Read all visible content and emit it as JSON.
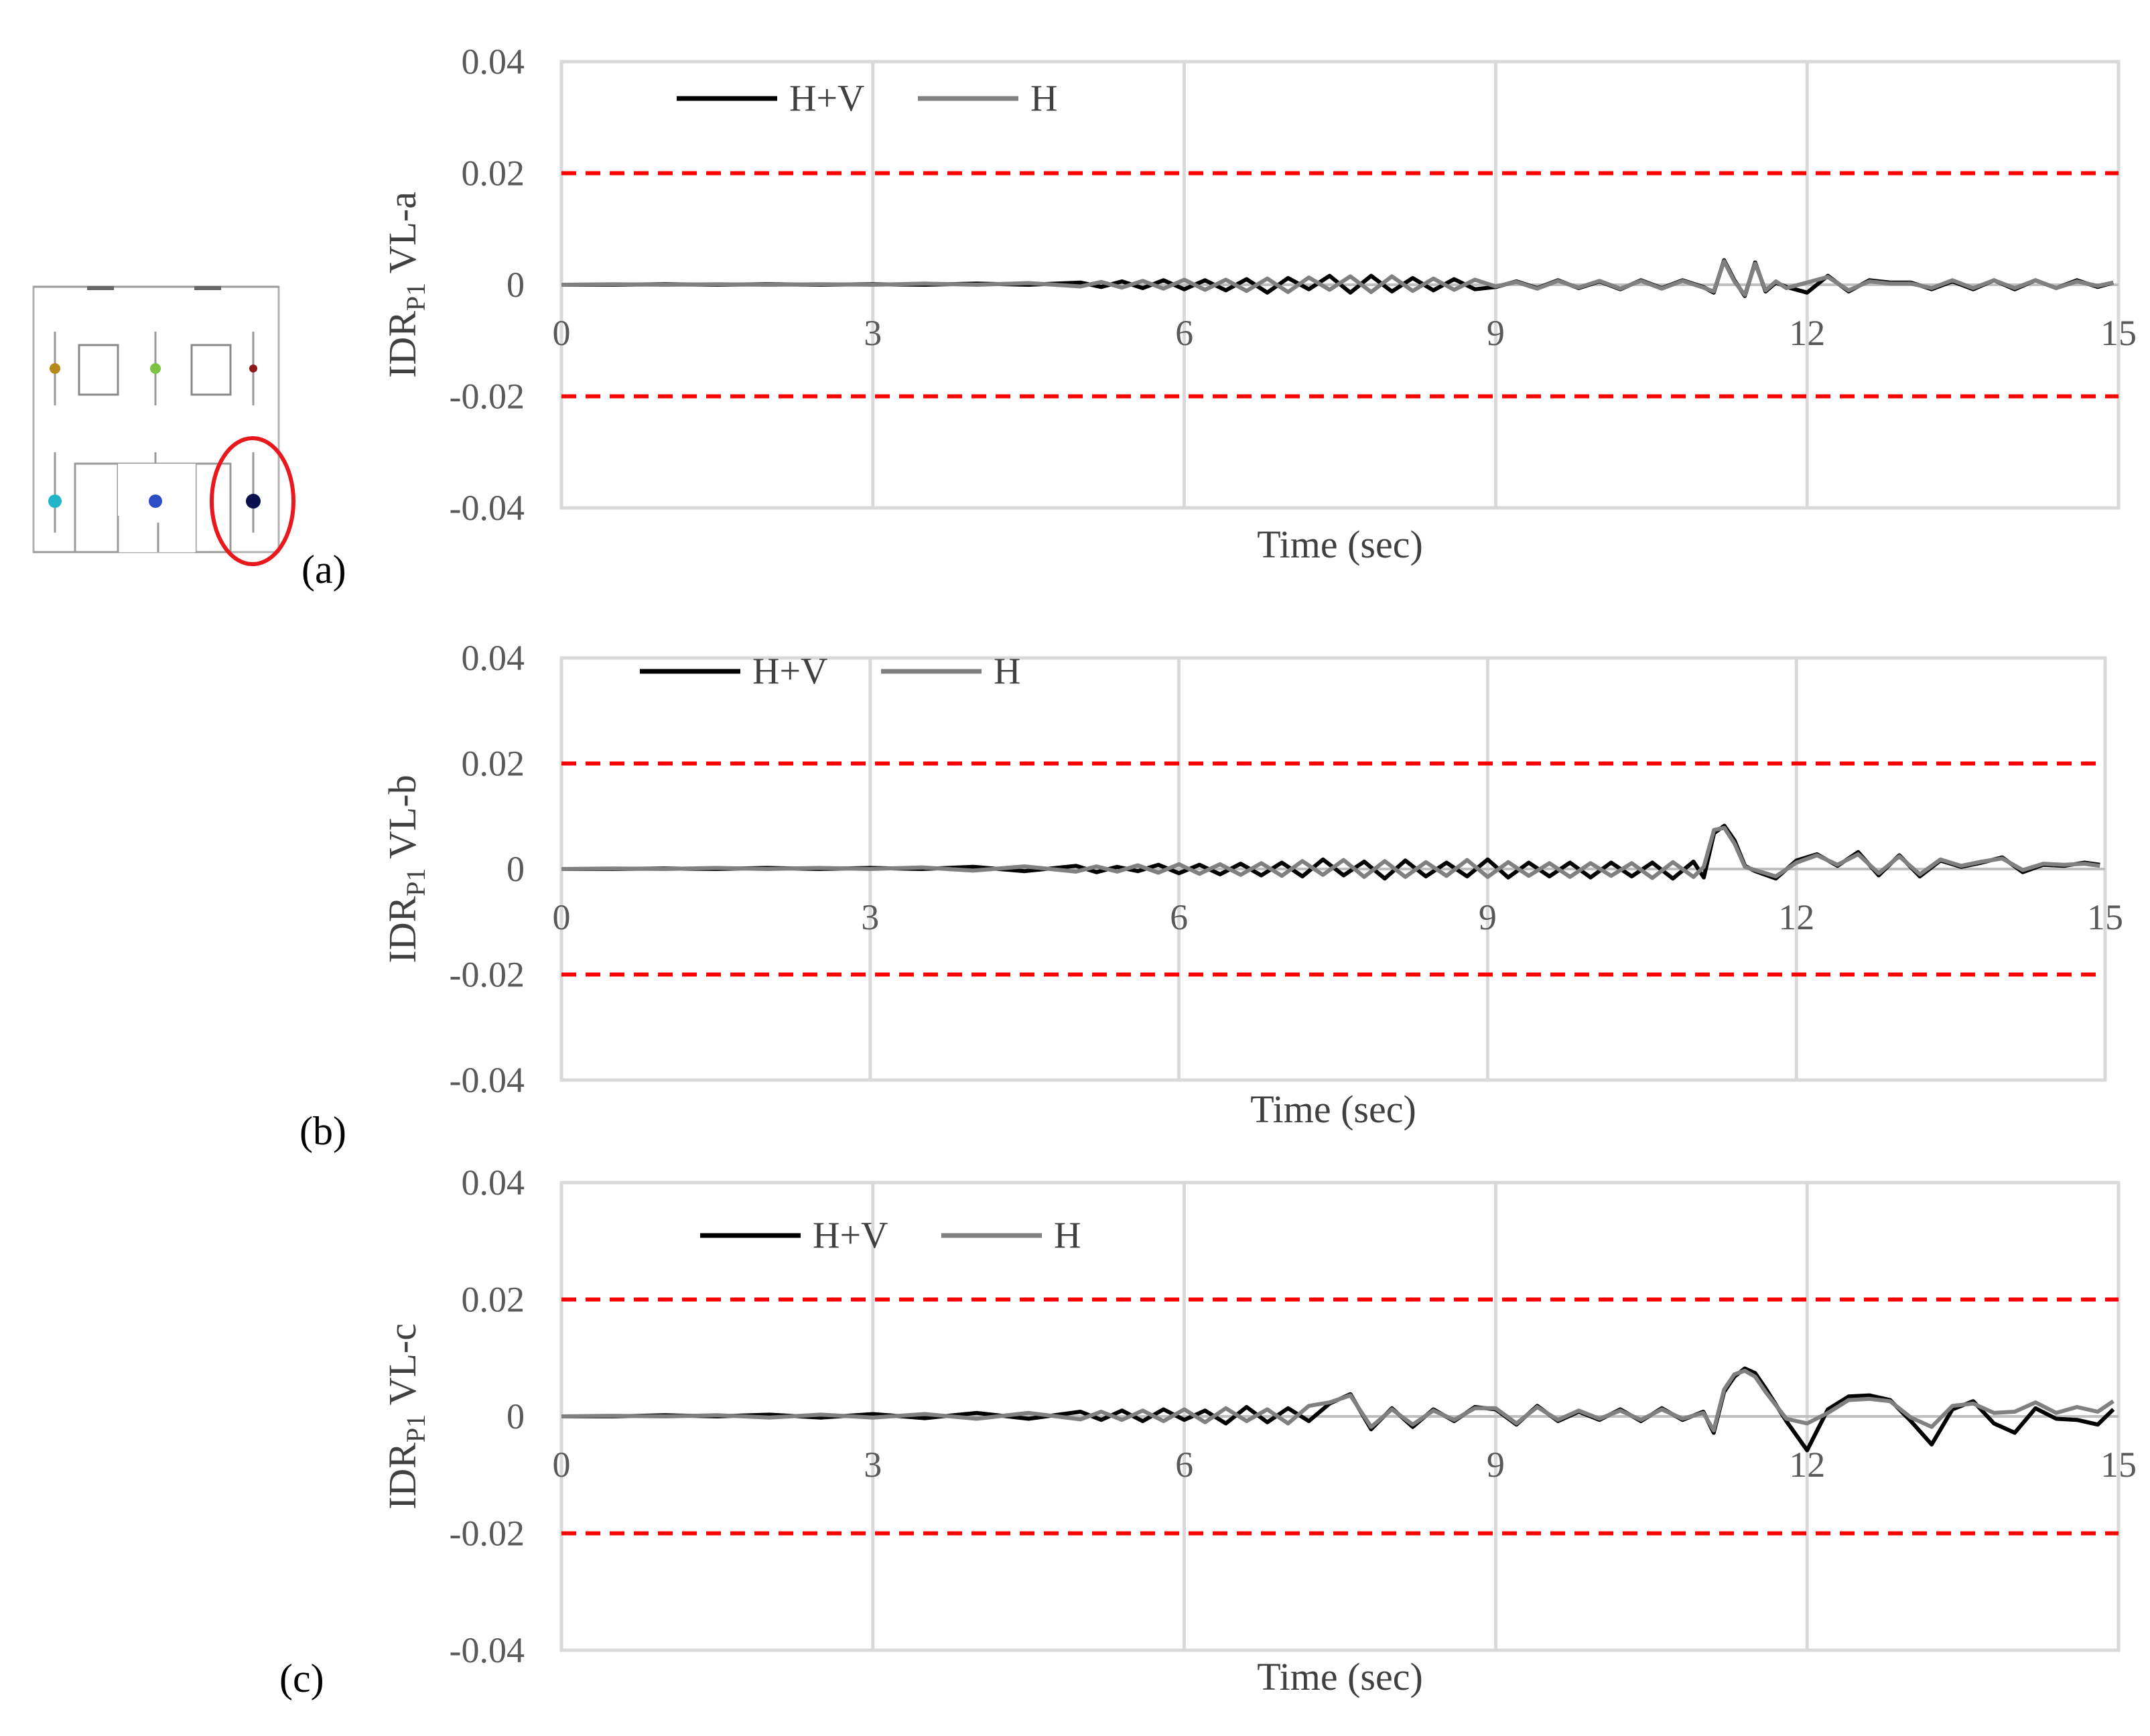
{
  "figure": {
    "panel_labels": [
      "(a)",
      "(b)",
      "(c)"
    ]
  },
  "chart_data": [
    {
      "type": "line",
      "panel": "(a)",
      "ylabel": {
        "main": "IDR",
        "sub": "P1",
        "suffix": " VL-a"
      },
      "xlabel": "Time (sec)",
      "xlim": [
        0,
        15
      ],
      "ylim": [
        -0.04,
        0.04
      ],
      "xticks": [
        "0",
        "3",
        "6",
        "9",
        "12",
        "15"
      ],
      "yticks": [
        "0.04",
        "0.02",
        "0",
        "-0.02",
        "-0.04"
      ],
      "limit_lines": [
        0.02,
        -0.02
      ],
      "legend": [
        "H+V",
        "H"
      ],
      "series": [
        {
          "name": "H+V",
          "color": "#000000",
          "x": [
            0,
            0.5,
            1,
            1.5,
            2,
            2.5,
            3,
            3.5,
            4,
            4.5,
            5,
            5.2,
            5.4,
            5.6,
            5.8,
            6,
            6.2,
            6.4,
            6.6,
            6.8,
            7,
            7.2,
            7.4,
            7.6,
            7.8,
            8,
            8.2,
            8.4,
            8.6,
            8.8,
            9,
            9.2,
            9.4,
            9.6,
            9.8,
            10,
            10.2,
            10.4,
            10.6,
            10.8,
            11,
            11.1,
            11.2,
            11.3,
            11.4,
            11.5,
            11.6,
            11.7,
            11.8,
            12,
            12.2,
            12.4,
            12.6,
            12.8,
            13,
            13.2,
            13.4,
            13.6,
            13.8,
            14,
            14.2,
            14.4,
            14.6,
            14.8,
            14.95
          ],
          "values": [
            0,
            0,
            0.0001,
            0,
            0.0001,
            0,
            0.0001,
            0,
            0.0002,
            0,
            0.0004,
            -0.0004,
            0.0006,
            -0.0006,
            0.0008,
            -0.0008,
            0.0008,
            -0.001,
            0.001,
            -0.0014,
            0.0012,
            -0.0008,
            0.0016,
            -0.0014,
            0.0016,
            -0.0012,
            0.0012,
            -0.001,
            0.001,
            -0.0008,
            -0.0004,
            0.0006,
            -0.0006,
            0.0008,
            -0.0006,
            0.0006,
            -0.0008,
            0.0008,
            -0.0006,
            0.0008,
            -0.0004,
            -0.0014,
            0.0044,
            0.0008,
            -0.002,
            0.004,
            -0.0012,
            0.0004,
            -0.0004,
            -0.0014,
            0.0016,
            -0.0012,
            0.0008,
            0.0004,
            0.0004,
            -0.0008,
            0.0006,
            -0.0008,
            0.0008,
            -0.0008,
            0.0008,
            -0.0006,
            0.0008,
            -0.0004,
            0.0004
          ]
        },
        {
          "name": "H",
          "color": "#808080",
          "x": [
            0,
            0.5,
            1,
            1.5,
            2,
            2.5,
            3,
            3.5,
            4,
            4.5,
            5,
            5.2,
            5.4,
            5.6,
            5.8,
            6,
            6.2,
            6.4,
            6.6,
            6.8,
            7,
            7.2,
            7.4,
            7.6,
            7.8,
            8,
            8.2,
            8.4,
            8.6,
            8.8,
            9,
            9.2,
            9.4,
            9.6,
            9.8,
            10,
            10.2,
            10.4,
            10.6,
            10.8,
            11,
            11.1,
            11.2,
            11.3,
            11.4,
            11.5,
            11.6,
            11.7,
            11.8,
            12,
            12.2,
            12.4,
            12.6,
            12.8,
            13,
            13.2,
            13.4,
            13.6,
            13.8,
            14,
            14.2,
            14.4,
            14.6,
            14.8,
            14.95
          ],
          "values": [
            0,
            0.0001,
            0,
            0.0001,
            0,
            0.0001,
            0,
            0.0002,
            0,
            0.0003,
            -0.0003,
            0.0005,
            -0.0005,
            0.0007,
            -0.0007,
            0.0009,
            -0.0009,
            0.0009,
            -0.0011,
            0.0011,
            -0.0013,
            0.0013,
            -0.0009,
            0.0015,
            -0.0013,
            0.0015,
            -0.0011,
            0.0011,
            -0.0009,
            0.0009,
            -0.0003,
            0.0005,
            -0.0007,
            0.0007,
            -0.0005,
            0.0007,
            -0.0007,
            0.0007,
            -0.0007,
            0.0007,
            -0.0005,
            -0.0012,
            0.0042,
            0.0006,
            -0.0018,
            0.0038,
            -0.001,
            0.0006,
            -0.0006,
            0.0004,
            0.0014,
            -0.001,
            0.0006,
            0.0002,
            0.0002,
            -0.0006,
            0.0008,
            -0.0006,
            0.0008,
            -0.0006,
            0.0008,
            -0.0006,
            0.0006,
            -0.0002,
            0.0004
          ]
        }
      ]
    },
    {
      "type": "line",
      "panel": "(b)",
      "ylabel": {
        "main": "IDR",
        "sub": "P1",
        "suffix": " VL-b"
      },
      "xlabel": "Time (sec)",
      "xlim": [
        0,
        15
      ],
      "ylim": [
        -0.04,
        0.04
      ],
      "xticks": [
        "0",
        "3",
        "6",
        "9",
        "12",
        "15"
      ],
      "yticks": [
        "0.04",
        "0.02",
        "0",
        "-0.02",
        "-0.04"
      ],
      "limit_lines": [
        0.02,
        -0.02
      ],
      "legend": [
        "H+V",
        "H"
      ],
      "series": [
        {
          "name": "H+V",
          "color": "#000000",
          "x": [
            0,
            0.5,
            1,
            1.5,
            2,
            2.5,
            3,
            3.5,
            4,
            4.5,
            5,
            5.2,
            5.4,
            5.6,
            5.8,
            6,
            6.2,
            6.4,
            6.6,
            6.8,
            7,
            7.2,
            7.4,
            7.6,
            7.8,
            8,
            8.2,
            8.4,
            8.6,
            8.8,
            9,
            9.2,
            9.4,
            9.6,
            9.8,
            10,
            10.2,
            10.4,
            10.6,
            10.8,
            11,
            11.1,
            11.2,
            11.3,
            11.4,
            11.5,
            11.6,
            11.8,
            12,
            12.2,
            12.4,
            12.6,
            12.8,
            13,
            13.2,
            13.4,
            13.6,
            13.8,
            14,
            14.2,
            14.4,
            14.6,
            14.8,
            14.95
          ],
          "values": [
            0,
            0,
            0.0001,
            0,
            0.0002,
            0,
            0.0002,
            0,
            0.0004,
            -0.0004,
            0.0006,
            -0.0006,
            0.0004,
            -0.0004,
            0.0008,
            -0.0008,
            0.0008,
            -0.001,
            0.001,
            -0.0012,
            0.0012,
            -0.0014,
            0.0018,
            -0.0012,
            0.0014,
            -0.0018,
            0.0016,
            -0.0014,
            0.0012,
            -0.0014,
            0.0018,
            -0.0016,
            0.0012,
            -0.0014,
            0.0012,
            -0.0016,
            0.0012,
            -0.0014,
            0.0012,
            -0.0018,
            0.0014,
            -0.0016,
            0.0068,
            0.0082,
            0.0054,
            0.0006,
            -0.0004,
            -0.0018,
            0.0016,
            0.0028,
            0.0006,
            0.0032,
            -0.0012,
            0.0026,
            -0.0014,
            0.0016,
            0.0004,
            0.0012,
            0.0022,
            -0.0006,
            0.0008,
            0.0006,
            0.0012,
            0.0008
          ]
        },
        {
          "name": "H",
          "color": "#808080",
          "x": [
            0,
            0.5,
            1,
            1.5,
            2,
            2.5,
            3,
            3.5,
            4,
            4.5,
            5,
            5.2,
            5.4,
            5.6,
            5.8,
            6,
            6.2,
            6.4,
            6.6,
            6.8,
            7,
            7.2,
            7.4,
            7.6,
            7.8,
            8,
            8.2,
            8.4,
            8.6,
            8.8,
            9,
            9.2,
            9.4,
            9.6,
            9.8,
            10,
            10.2,
            10.4,
            10.6,
            10.8,
            11,
            11.1,
            11.2,
            11.3,
            11.4,
            11.5,
            11.6,
            11.8,
            12,
            12.2,
            12.4,
            12.6,
            12.8,
            13,
            13.2,
            13.4,
            13.6,
            13.8,
            14,
            14.2,
            14.4,
            14.6,
            14.8,
            14.95
          ],
          "values": [
            0,
            0.0001,
            0,
            0.0002,
            0,
            0.0002,
            0,
            0.0003,
            -0.0003,
            0.0005,
            -0.0005,
            0.0005,
            -0.0005,
            0.0007,
            -0.0007,
            0.0009,
            -0.0009,
            0.0009,
            -0.0011,
            0.0011,
            -0.0013,
            0.0015,
            -0.0011,
            0.0017,
            -0.0015,
            0.0015,
            -0.0015,
            0.0013,
            -0.0013,
            0.0017,
            -0.0015,
            0.0013,
            -0.0013,
            0.0011,
            -0.0015,
            0.0011,
            -0.0013,
            0.0011,
            -0.0017,
            0.0013,
            -0.0015,
            0.0004,
            0.0074,
            0.0078,
            0.0048,
            0.0004,
            -0.0002,
            -0.0014,
            0.0012,
            0.0026,
            0.0008,
            0.0028,
            -0.0008,
            0.0024,
            -0.001,
            0.0018,
            0.0006,
            0.0014,
            0.002,
            -0.0002,
            0.001,
            0.0008,
            0.001,
            0.0006
          ]
        }
      ]
    },
    {
      "type": "line",
      "panel": "(c)",
      "ylabel": {
        "main": "IDR",
        "sub": "P1",
        "suffix": " VL-c"
      },
      "xlabel": "Time (sec)",
      "xlim": [
        0,
        15
      ],
      "ylim": [
        -0.04,
        0.04
      ],
      "xticks": [
        "0",
        "3",
        "6",
        "9",
        "12",
        "15"
      ],
      "yticks": [
        "0.04",
        "0.02",
        "0",
        "-0.02",
        "-0.04"
      ],
      "limit_lines": [
        0.02,
        -0.02
      ],
      "legend": [
        "H+V",
        "H"
      ],
      "series": [
        {
          "name": "H+V",
          "color": "#000000",
          "x": [
            0,
            0.5,
            1,
            1.5,
            2,
            2.5,
            3,
            3.5,
            4,
            4.5,
            5,
            5.2,
            5.4,
            5.6,
            5.8,
            6,
            6.2,
            6.4,
            6.6,
            6.8,
            7,
            7.2,
            7.4,
            7.6,
            7.8,
            8,
            8.2,
            8.4,
            8.6,
            8.8,
            9,
            9.2,
            9.4,
            9.6,
            9.8,
            10,
            10.2,
            10.4,
            10.6,
            10.8,
            11,
            11.1,
            11.2,
            11.3,
            11.4,
            11.5,
            11.6,
            11.8,
            12,
            12.2,
            12.4,
            12.6,
            12.8,
            13,
            13.2,
            13.4,
            13.6,
            13.8,
            14,
            14.2,
            14.4,
            14.6,
            14.8,
            14.95
          ],
          "values": [
            0,
            0,
            0.0002,
            0,
            0.0003,
            -0.0002,
            0.0004,
            -0.0003,
            0.0006,
            -0.0004,
            0.0008,
            -0.0006,
            0.001,
            -0.0008,
            0.0012,
            -0.0006,
            0.001,
            -0.0012,
            0.0016,
            -0.001,
            0.0014,
            -0.0008,
            0.0022,
            0.0038,
            -0.0022,
            0.0014,
            -0.0018,
            0.0012,
            -0.0008,
            0.0016,
            0.0012,
            -0.0014,
            0.0018,
            -0.0008,
            0.0008,
            -0.0006,
            0.0012,
            -0.0008,
            0.0014,
            -0.0006,
            0.0008,
            -0.0028,
            0.0042,
            0.0068,
            0.0082,
            0.0074,
            0.0048,
            -0.0008,
            -0.0058,
            0.0012,
            0.0034,
            0.0036,
            0.0028,
            -0.0008,
            -0.0048,
            0.0012,
            0.0026,
            -0.0012,
            -0.0028,
            0.0014,
            -0.0004,
            -0.0006,
            -0.0014,
            0.0012
          ]
        },
        {
          "name": "H",
          "color": "#808080",
          "x": [
            0,
            0.5,
            1,
            1.5,
            2,
            2.5,
            3,
            3.5,
            4,
            4.5,
            5,
            5.2,
            5.4,
            5.6,
            5.8,
            6,
            6.2,
            6.4,
            6.6,
            6.8,
            7,
            7.2,
            7.4,
            7.6,
            7.8,
            8,
            8.2,
            8.4,
            8.6,
            8.8,
            9,
            9.2,
            9.4,
            9.6,
            9.8,
            10,
            10.2,
            10.4,
            10.6,
            10.8,
            11,
            11.1,
            11.2,
            11.3,
            11.4,
            11.5,
            11.6,
            11.8,
            12,
            12.2,
            12.4,
            12.6,
            12.8,
            13,
            13.2,
            13.4,
            13.6,
            13.8,
            14,
            14.2,
            14.4,
            14.6,
            14.8,
            14.95
          ],
          "values": [
            0,
            0.0001,
            0,
            0.0002,
            -0.0002,
            0.0003,
            -0.0002,
            0.0004,
            -0.0004,
            0.0006,
            -0.0005,
            0.0008,
            -0.0006,
            0.001,
            -0.0008,
            0.0012,
            -0.001,
            0.0014,
            -0.0008,
            0.0012,
            -0.0012,
            0.0018,
            0.0024,
            0.0036,
            -0.0018,
            0.0012,
            -0.0014,
            0.001,
            -0.0006,
            0.0014,
            0.0014,
            -0.0012,
            0.0016,
            -0.0006,
            0.001,
            -0.0004,
            0.001,
            -0.0006,
            0.0012,
            -0.0004,
            0.0006,
            -0.0024,
            0.0046,
            0.0072,
            0.0078,
            0.0068,
            0.0042,
            -0.0004,
            -0.0012,
            0.0006,
            0.0028,
            0.003,
            0.0026,
            -0.0002,
            -0.0018,
            0.0018,
            0.0022,
            0.0006,
            0.0008,
            0.0024,
            0.0006,
            0.0016,
            0.0008,
            0.0026
          ]
        }
      ]
    }
  ]
}
